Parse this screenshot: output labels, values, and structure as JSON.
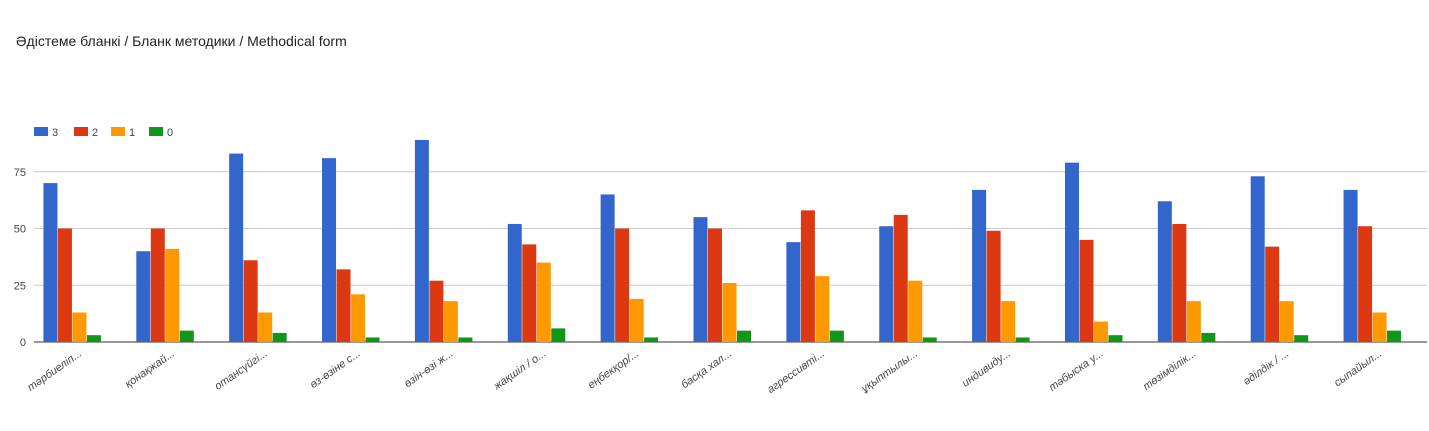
{
  "title": "Әдістеме бланкі / Бланк методики / Methodical form",
  "chart_data": {
    "type": "bar",
    "categories": [
      "тәрбиеліп...",
      "қонақжай...",
      "отансүйгі...",
      "өз-өзіне с...",
      "өзін-өзі ж...",
      "жақшіл / о...",
      "еңбекқор/...",
      "басқа хал...",
      "агрессивті...",
      "ұқыптылы...",
      "индивиду...",
      "тәбыска у...",
      "төзімділік...",
      "әділдік / ...",
      "сыпайыл..."
    ],
    "series": [
      {
        "name": "3",
        "color": "#3366cc",
        "values": [
          70,
          40,
          83,
          81,
          89,
          52,
          65,
          55,
          44,
          51,
          67,
          79,
          62,
          73,
          67
        ]
      },
      {
        "name": "2",
        "color": "#dc3912",
        "values": [
          50,
          50,
          36,
          32,
          27,
          43,
          50,
          50,
          58,
          56,
          49,
          45,
          52,
          42,
          51
        ]
      },
      {
        "name": "1",
        "color": "#ff9900",
        "values": [
          13,
          41,
          13,
          21,
          18,
          35,
          19,
          26,
          29,
          27,
          18,
          9,
          18,
          18,
          13
        ]
      },
      {
        "name": "0",
        "color": "#109618",
        "values": [
          3,
          5,
          4,
          2,
          2,
          6,
          2,
          5,
          5,
          2,
          2,
          3,
          4,
          3,
          5
        ]
      }
    ],
    "yticks": [
      0,
      25,
      50,
      75
    ],
    "ylim": [
      0,
      100
    ],
    "legend_position": "top-left",
    "grid": true
  }
}
